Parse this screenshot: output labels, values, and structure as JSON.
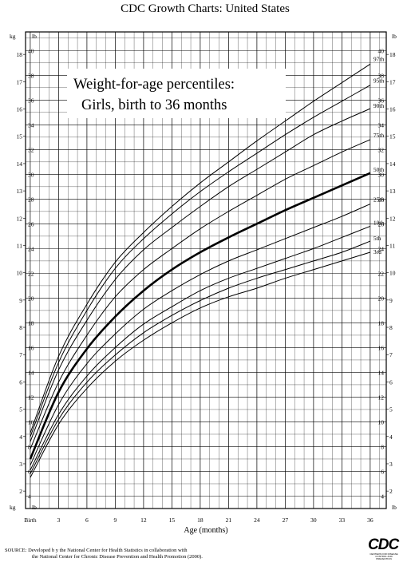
{
  "page_title": "CDC Growth Charts: United States",
  "chart_data": {
    "type": "line",
    "title": "Weight-for-age percentiles:",
    "subtitle": "Girls, birth to 36 months",
    "xlabel": "Age (months)",
    "ylabel_left": "kg",
    "ylabel_right": "lb",
    "x_ticks": [
      "Birth",
      "3",
      "6",
      "9",
      "12",
      "15",
      "18",
      "21",
      "24",
      "27",
      "30",
      "33",
      "36"
    ],
    "x_tick_values": [
      0,
      3,
      6,
      9,
      12,
      15,
      18,
      21,
      24,
      27,
      30,
      33,
      36
    ],
    "xlim": [
      -0.5,
      37.7
    ],
    "kg_ticks": [
      2,
      3,
      4,
      5,
      6,
      7,
      8,
      9,
      10,
      11,
      12,
      13,
      14,
      15,
      16,
      17,
      18
    ],
    "lb_ticks": [
      4,
      6,
      8,
      10,
      12,
      14,
      16,
      18,
      20,
      22,
      24,
      26,
      28,
      30,
      32,
      34,
      36,
      38,
      40
    ],
    "ylim_lb": [
      3,
      41.5
    ],
    "grid": true,
    "x": [
      0,
      3,
      6,
      9,
      12,
      15,
      18,
      21,
      24,
      27,
      30,
      33,
      36
    ],
    "series": [
      {
        "name": "97th",
        "values": [
          9.1,
          15.3,
          19.5,
          22.9,
          25.3,
          27.4,
          29.3,
          31.0,
          32.7,
          34.3,
          35.9,
          37.4,
          38.9
        ],
        "bold": false
      },
      {
        "name": "95th",
        "values": [
          8.8,
          14.8,
          19.0,
          22.4,
          24.8,
          26.8,
          28.6,
          30.2,
          31.7,
          33.2,
          34.6,
          35.9,
          37.2
        ],
        "bold": false
      },
      {
        "name": "90th",
        "values": [
          8.4,
          14.2,
          18.2,
          21.5,
          23.9,
          25.7,
          27.4,
          29.0,
          30.4,
          31.8,
          33.2,
          34.3,
          35.3
        ],
        "bold": false
      },
      {
        "name": "75th",
        "values": [
          7.8,
          13.2,
          17.0,
          20.1,
          22.3,
          24.0,
          25.6,
          27.0,
          28.3,
          29.6,
          30.7,
          31.8,
          32.8
        ],
        "bold": false
      },
      {
        "name": "50th",
        "values": [
          7.0,
          12.4,
          15.9,
          18.5,
          20.6,
          22.3,
          23.7,
          24.9,
          26.0,
          27.1,
          28.1,
          29.1,
          30.1
        ],
        "bold": true
      },
      {
        "name": "25th",
        "values": [
          6.5,
          11.4,
          14.7,
          17.1,
          19.1,
          20.6,
          21.9,
          23.0,
          23.9,
          24.8,
          25.7,
          26.6,
          27.6
        ],
        "bold": false
      },
      {
        "name": "10th",
        "values": [
          6.1,
          10.6,
          13.7,
          16.0,
          17.9,
          19.3,
          20.6,
          21.6,
          22.4,
          23.2,
          24.0,
          24.9,
          25.8
        ],
        "bold": false
      },
      {
        "name": "5th",
        "values": [
          5.8,
          10.2,
          13.2,
          15.4,
          17.2,
          18.6,
          19.8,
          20.8,
          21.6,
          22.3,
          23.0,
          23.7,
          24.6
        ],
        "bold": false
      },
      {
        "name": "3rd",
        "values": [
          5.5,
          9.8,
          12.7,
          14.9,
          16.6,
          18.0,
          19.2,
          20.1,
          20.8,
          21.6,
          22.3,
          23.0,
          23.7
        ],
        "bold": false
      }
    ]
  },
  "footer": {
    "source_line1": "SOURCE: Developed b   y the National Center for Health Statistics in collaboration with",
    "source_line2": "the National Center for Chronic Disease Prevention and Health Promotion (2000).",
    "logo_text": "CDC",
    "logo_subtext": "CENTERS FOR DISEASE CONTROL AND PREVENTION"
  }
}
